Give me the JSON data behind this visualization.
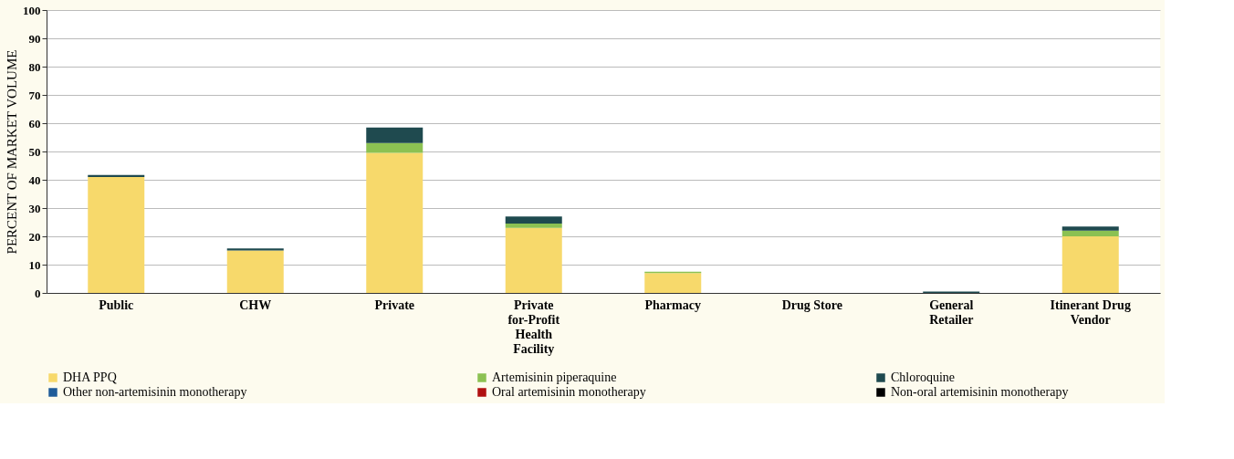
{
  "chart_data": {
    "type": "bar",
    "stacked": true,
    "ylabel": "PERCENT OF MARKET VOLUME",
    "categories": [
      "Public",
      "CHW",
      "Private",
      "Private for-Profit Health Facility",
      "Pharmacy",
      "Drug Store",
      "General Retailer",
      "Itinerant Drug Vendor"
    ],
    "series": [
      {
        "name": "DHA PPQ",
        "color": "#f7d96b",
        "values": [
          41,
          15,
          49.5,
          23,
          7,
          0,
          0,
          20
        ]
      },
      {
        "name": "Artemisinin piperaquine",
        "color": "#8cc152",
        "values": [
          0,
          0,
          3.5,
          1.5,
          0.5,
          0,
          0,
          2
        ]
      },
      {
        "name": "Chloroquine",
        "color": "#1f4a4f",
        "values": [
          0.7,
          0.7,
          5.5,
          2.5,
          0,
          0,
          0.5,
          1.5
        ]
      },
      {
        "name": "Other non-artemisinin monotherapy",
        "color": "#1f5c99",
        "values": [
          0,
          0,
          0,
          0,
          0,
          0,
          0,
          0
        ]
      },
      {
        "name": "Oral artemisinin monotherapy",
        "color": "#b01010",
        "values": [
          0,
          0,
          0,
          0,
          0,
          0,
          0,
          0
        ]
      },
      {
        "name": "Non-oral artemisinin monotherapy",
        "color": "#000000",
        "values": [
          0,
          0,
          0,
          0,
          0,
          0,
          0,
          0
        ]
      }
    ],
    "ylim": [
      0,
      100
    ],
    "yticks": [
      0,
      10,
      20,
      30,
      40,
      50,
      60,
      70,
      80,
      90,
      100
    ],
    "grid": "y",
    "legend": "bottom"
  }
}
